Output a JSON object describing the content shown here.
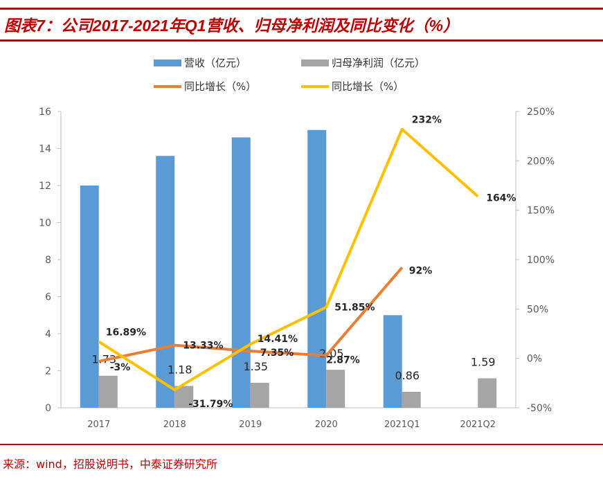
{
  "title": "图表7：公司2017-2021年Q1营收、归母净利润及同比变化（%）",
  "source": "来源：wind，招股说明书，中泰证券研究所",
  "chart_data": {
    "type": "bar+line",
    "categories": [
      "2017",
      "2018",
      "2019",
      "2020",
      "2021Q1",
      "2021Q2"
    ],
    "left_axis": {
      "range": [
        0,
        16
      ],
      "ticks": [
        "0",
        "2",
        "4",
        "6",
        "8",
        "10",
        "12",
        "14",
        "16"
      ]
    },
    "right_axis": {
      "range": [
        -50,
        250
      ],
      "ticks": [
        "-50%",
        "0%",
        "50%",
        "100%",
        "150%",
        "200%",
        "250%"
      ]
    },
    "legend_position": "top",
    "series": [
      {
        "name": "营收（亿元）",
        "type": "bar",
        "axis": "left",
        "color": "#5b9bd5",
        "values": [
          12.0,
          13.6,
          14.6,
          15.0,
          5.0,
          null
        ]
      },
      {
        "name": "归母净利润（亿元）",
        "type": "bar",
        "axis": "left",
        "color": "#a5a5a5",
        "values": [
          1.73,
          1.18,
          1.35,
          2.05,
          0.86,
          1.59
        ],
        "labels": [
          "1.73",
          "1.18",
          "1.35",
          "2.05",
          "0.86",
          "1.59"
        ]
      },
      {
        "name": "同比增长（%）",
        "type": "line",
        "axis": "right",
        "color": "#ed7d31",
        "values": [
          -3,
          13.33,
          7.35,
          2.87,
          92,
          null
        ],
        "labels": [
          "-3%",
          "13.33%",
          "7.35%",
          "2.87%",
          "92%",
          null
        ]
      },
      {
        "name": "同比增长（%）",
        "type": "line",
        "axis": "right",
        "color": "#ffc000",
        "values": [
          16.89,
          -31.79,
          14.41,
          51.85,
          232,
          164
        ],
        "labels": [
          "16.89%",
          "-31.79%",
          "14.41%",
          "51.85%",
          "232%",
          "164%"
        ]
      }
    ]
  }
}
